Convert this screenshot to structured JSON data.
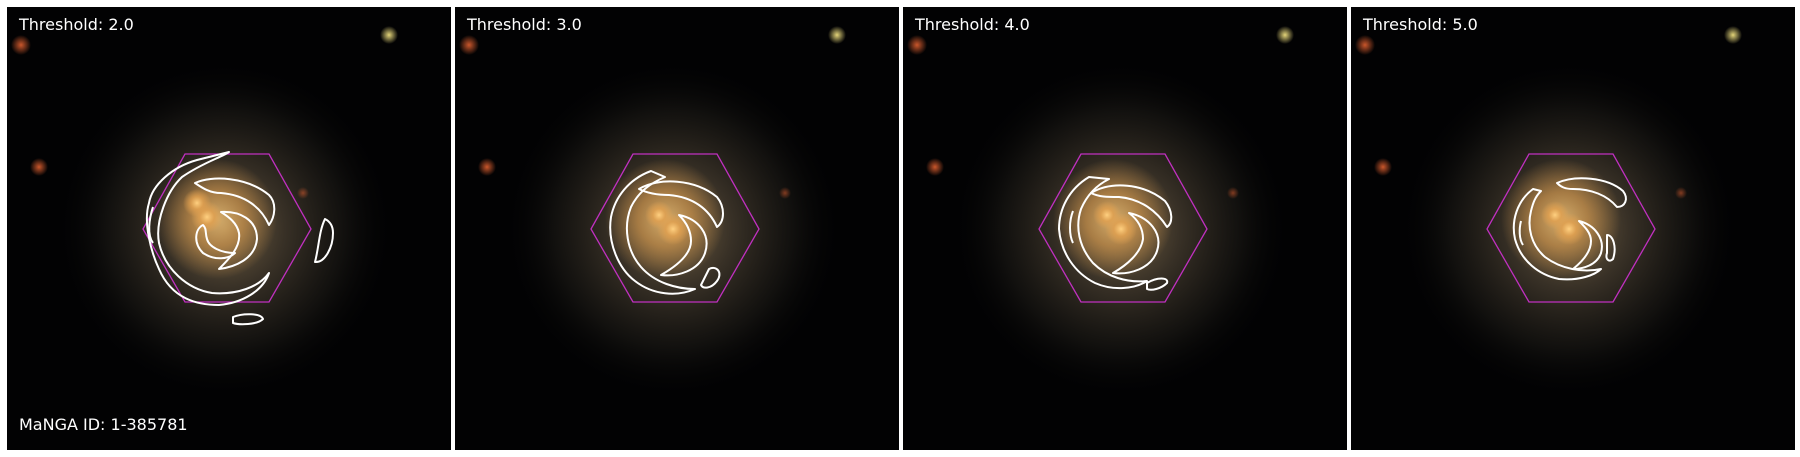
{
  "panels": [
    {
      "label": "Threshold: 2.0"
    },
    {
      "label": "Threshold: 3.0"
    },
    {
      "label": "Threshold: 4.0"
    },
    {
      "label": "Threshold: 5.0"
    }
  ],
  "footer_label": "MaNGA ID: 1-385781",
  "colors": {
    "hexagon": "#c030c0",
    "contour": "#ffffff",
    "background": "#020203",
    "galaxy_core": "#f3b05a"
  }
}
